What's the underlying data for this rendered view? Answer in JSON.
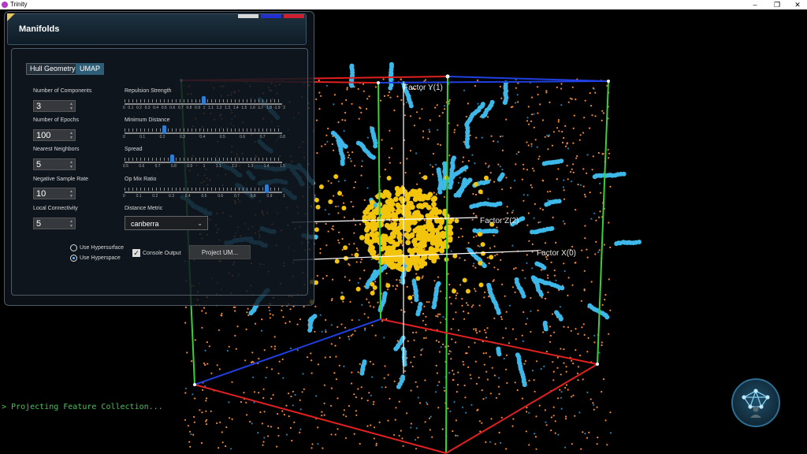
{
  "window": {
    "title": "Trinity",
    "controls": [
      "–",
      "❐",
      "✕"
    ]
  },
  "colors": {
    "accent_gold": "#f2c40c",
    "accent_cyan": "#3db8e8",
    "point_orange": "#f08a3a",
    "axis_green": "#3ad03a",
    "axis_red": "#e02020",
    "axis_blue": "#2040e0",
    "console_green": "#48c45a"
  },
  "panel": {
    "title": "Manifolds",
    "swatches": [
      "#d8d8d8",
      "#2230d0",
      "#d02030"
    ],
    "tabs": [
      "Hull Geometry",
      "UMAP"
    ],
    "active_tab": "UMAP",
    "fields": [
      {
        "label": "Number of Components",
        "value": "3"
      },
      {
        "label": "Number of Epochs",
        "value": "100"
      },
      {
        "label": "Nearest Neighbors",
        "value": "5"
      },
      {
        "label": "Negative Sample Rate",
        "value": "10"
      },
      {
        "label": "Local Connectivity",
        "value": "5"
      }
    ],
    "sliders": [
      {
        "label": "Repulsion Strength",
        "value": 1.0,
        "min": 0,
        "max": 2,
        "ticks": [
          "0",
          "0.1",
          "0.2",
          "0.3",
          "0.4",
          "0.5",
          "0.6",
          "0.7",
          "0.8",
          "0.9",
          "1",
          "1.1",
          "1.2",
          "1.3",
          "1.4",
          "1.5",
          "1.6",
          "1.7",
          "1.8",
          "1.9",
          "2"
        ]
      },
      {
        "label": "Minimum Distance",
        "value": 0.2,
        "min": 0,
        "max": 0.8,
        "ticks": [
          "0",
          "0.1",
          "0.2",
          "0.3",
          "0.4",
          "0.5",
          "0.6",
          "0.7",
          "0.8"
        ]
      },
      {
        "label": "Spread",
        "value": 0.8,
        "min": 0.5,
        "max": 1.5,
        "ticks": [
          "0.5",
          "0.6",
          "0.7",
          "0.8",
          "0.9",
          "1",
          "1.1",
          "1.2",
          "1.3",
          "1.4",
          "1.5"
        ]
      },
      {
        "label": "Op Mix Ratio",
        "value": 0.9,
        "min": 0,
        "max": 1,
        "ticks": [
          "0",
          "0.1",
          "0.2",
          "0.3",
          "0.4",
          "0.5",
          "0.6",
          "0.7",
          "0.8",
          "0.9",
          "1"
        ]
      }
    ],
    "distance_metric": {
      "label": "Distance Metric",
      "value": "canberra"
    },
    "radios": [
      {
        "label": "Use Hypersurface",
        "checked": false
      },
      {
        "label": "Use Hyperspace",
        "checked": true
      }
    ],
    "console_output": {
      "label": "Console Output",
      "checked": true
    },
    "project_button": "Project UM..."
  },
  "axes": {
    "y_label": "Factor Y(1)",
    "z_label": "Factor Z(2)",
    "x_label": "Factor X(0)"
  },
  "console": {
    "text": "> Projecting Feature Collection..."
  },
  "widgets": {
    "network_icon": "network-graph-icon"
  }
}
